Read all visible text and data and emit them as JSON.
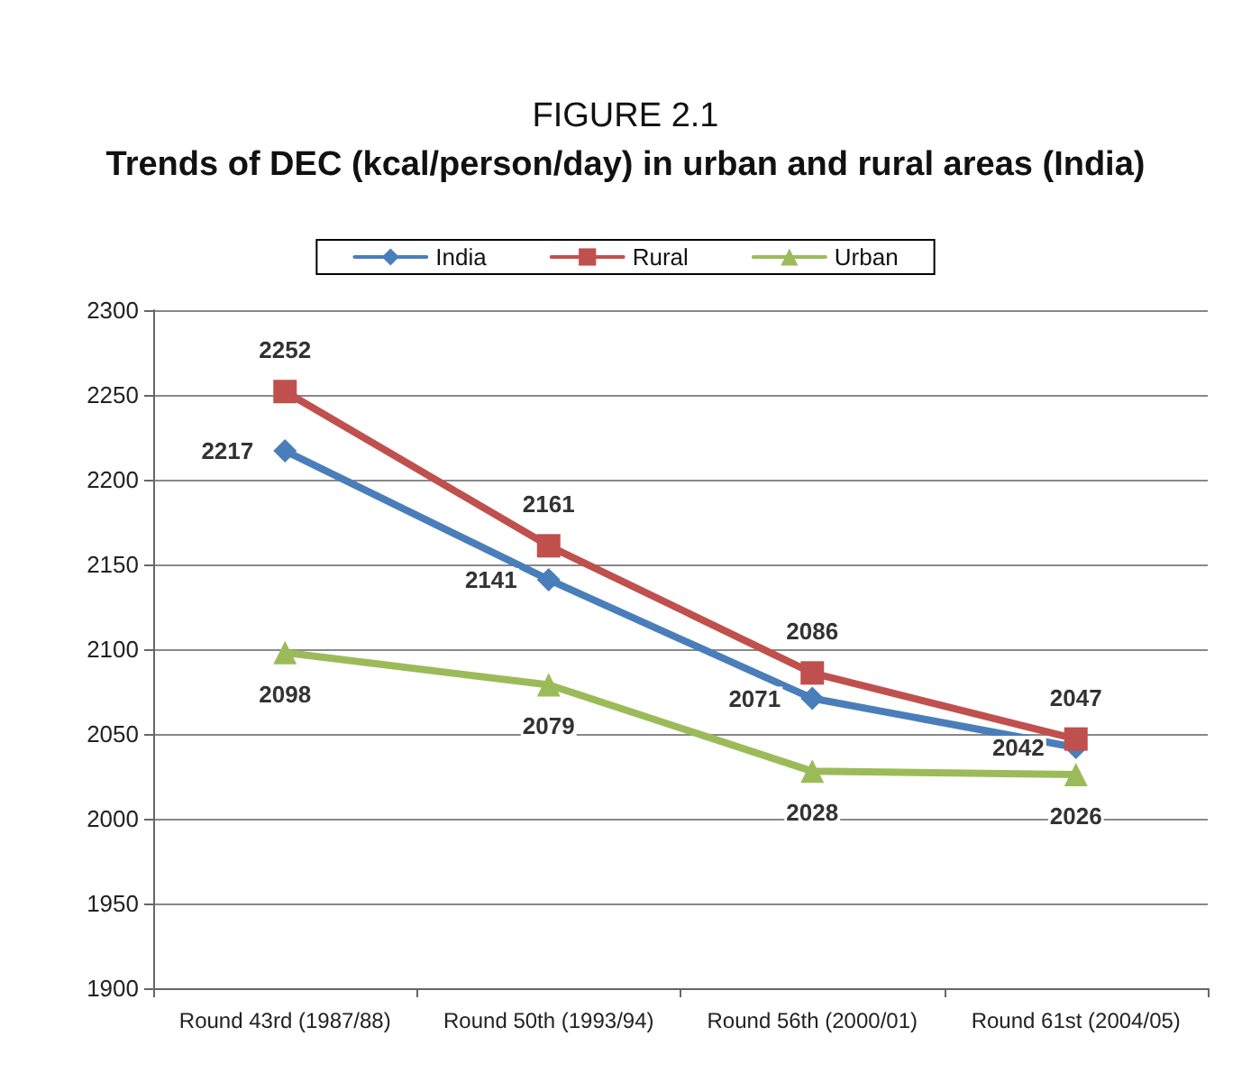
{
  "chart_data": {
    "type": "line",
    "title": "FIGURE 2.1",
    "subtitle": "Trends of DEC (kcal/person/day) in urban and rural areas (India)",
    "categories": [
      "Round 43rd (1987/88)",
      "Round 50th (1993/94)",
      "Round 56th (2000/01)",
      "Round 61st (2004/05)"
    ],
    "series": [
      {
        "name": "India",
        "color": "#4a7ebb",
        "marker": "diamond",
        "values": [
          2217,
          2141,
          2071,
          2042
        ]
      },
      {
        "name": "Rural",
        "color": "#c0504d",
        "marker": "square",
        "values": [
          2252,
          2161,
          2086,
          2047
        ]
      },
      {
        "name": "Urban",
        "color": "#9bbb59",
        "marker": "triangle",
        "values": [
          2098,
          2079,
          2028,
          2026
        ]
      }
    ],
    "ylim": [
      1900,
      2300
    ],
    "yticks": [
      1900,
      1950,
      2000,
      2050,
      2100,
      2150,
      2200,
      2250,
      2300
    ],
    "grid": "y",
    "legend": "top",
    "data_labels": true,
    "line_style": "solid"
  }
}
